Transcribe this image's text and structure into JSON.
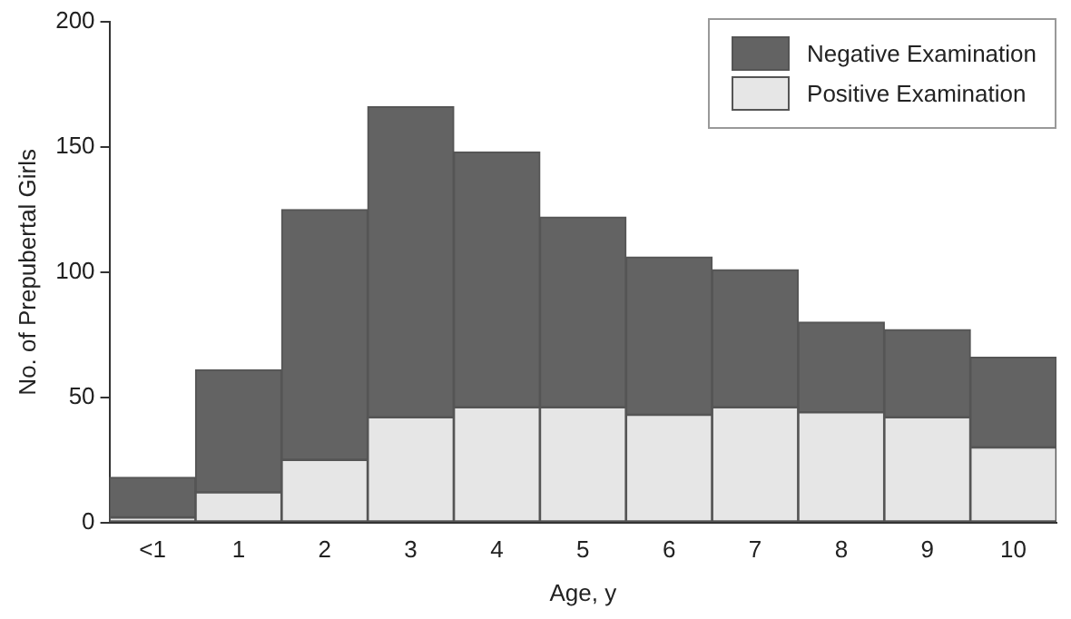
{
  "chart_data": {
    "type": "bar",
    "xlabel": "Age, y",
    "ylabel": "No. of Prepubertal Girls",
    "categories": [
      "<1",
      "1",
      "2",
      "3",
      "4",
      "5",
      "6",
      "7",
      "8",
      "9",
      "10"
    ],
    "series": [
      {
        "name": "Positive Examination",
        "color": "#e6e6e6",
        "values": [
          2,
          12,
          25,
          42,
          46,
          46,
          43,
          46,
          44,
          42,
          30
        ]
      },
      {
        "name": "Negative Examination",
        "color": "#636363",
        "values": [
          16,
          49,
          100,
          124,
          102,
          76,
          63,
          55,
          36,
          35,
          36
        ]
      }
    ],
    "stacked": true,
    "ylim": [
      0,
      200
    ],
    "yticks": [
      0,
      50,
      100,
      150,
      200
    ],
    "grid": false,
    "legend": "top right"
  }
}
